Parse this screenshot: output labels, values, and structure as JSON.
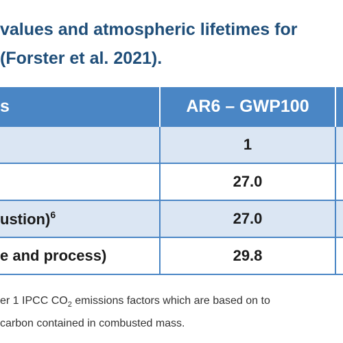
{
  "title": {
    "line1": "values and atmospheric lifetimes for",
    "line2": "(Forster et al. 2021)."
  },
  "table": {
    "headers": [
      "s",
      "AR6 – GWP100",
      ""
    ],
    "rows": [
      {
        "name": "",
        "value": "1",
        "note": ""
      },
      {
        "name": "",
        "value": "27.0",
        "note": ""
      },
      {
        "name": "ustion)",
        "note": "6",
        "value": "27.0"
      },
      {
        "name": "e and process)",
        "value": "29.8",
        "note": ""
      }
    ]
  },
  "notes": {
    "line1_prefix": "er 1 IPCC CO",
    "line1_sub": "2",
    "line1_suffix": " emissions factors which are based on to",
    "line2": "carbon contained in combusted mass."
  }
}
